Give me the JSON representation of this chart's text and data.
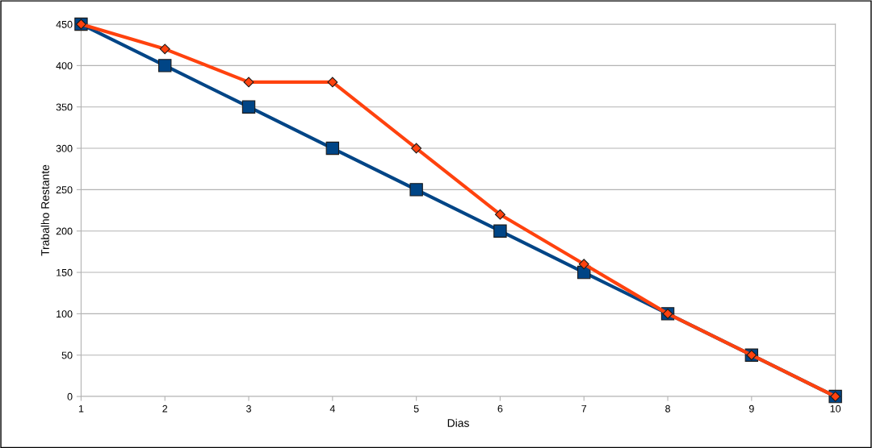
{
  "chart_data": {
    "type": "line",
    "xlabel": "Dias",
    "ylabel": "Trabalho Restante",
    "x": [
      1,
      2,
      3,
      4,
      5,
      6,
      7,
      8,
      9,
      10
    ],
    "series": [
      {
        "color": "#004586",
        "marker": "square",
        "values": [
          450,
          400,
          350,
          300,
          250,
          200,
          150,
          100,
          50,
          0
        ]
      },
      {
        "color": "#ff420e",
        "marker": "diamond",
        "values": [
          450,
          420,
          380,
          380,
          300,
          220,
          160,
          100,
          50,
          0
        ]
      }
    ],
    "xlim": [
      1,
      10
    ],
    "xticks": [
      1,
      2,
      3,
      4,
      5,
      6,
      7,
      8,
      9,
      10
    ],
    "ylim": [
      0,
      450
    ],
    "yticks": [
      0,
      50,
      100,
      150,
      200,
      250,
      300,
      350,
      400,
      450
    ],
    "grid": "y",
    "line_style": "solid"
  }
}
